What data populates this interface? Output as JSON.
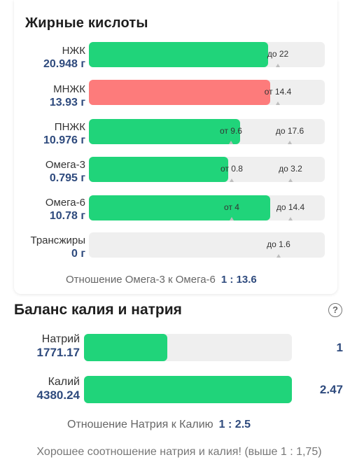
{
  "fatty_acids": {
    "title": "Жирные кислоты",
    "rows": [
      {
        "name": "НЖК",
        "amount": "20.948 г",
        "fill_fraction": 0.76,
        "color": "#20d47a",
        "markers": [
          "до 22"
        ]
      },
      {
        "name": "МНЖК",
        "amount": "13.93 г",
        "fill_fraction": 0.77,
        "color": "#fd7b7b",
        "markers": [
          "от 14.4"
        ]
      },
      {
        "name": "ПНЖК",
        "amount": "10.976 г",
        "fill_fraction": 0.64,
        "color": "#20d47a",
        "markers": [
          "от 9.6",
          "до 17.6"
        ]
      },
      {
        "name": "Омега-3",
        "amount": "0.795 г",
        "fill_fraction": 0.59,
        "color": "#20d47a",
        "markers": [
          "от 0.8",
          "до 3.2"
        ]
      },
      {
        "name": "Омега-6",
        "amount": "10.78 г",
        "fill_fraction": 0.77,
        "color": "#20d47a",
        "markers": [
          "от 4",
          "до 14.4"
        ]
      },
      {
        "name": "Трансжиры",
        "amount": "0 г",
        "fill_fraction": 0.0,
        "color": "#20d47a",
        "markers": [
          "до 1.6"
        ]
      }
    ],
    "ratio_label": "Отношение Омега-3 к Омега-6",
    "ratio_value": "1 : 13.6"
  },
  "potassium_sodium": {
    "title": "Баланс калия и натрия",
    "help_icon": "question-circle-icon",
    "help_glyph": "?",
    "rows": [
      {
        "name": "Натрий",
        "amount": "1771.17",
        "fill_fraction": 0.4,
        "side_value": "1"
      },
      {
        "name": "Калий",
        "amount": "4380.24",
        "fill_fraction": 1.0,
        "side_value": "2.47"
      }
    ],
    "ratio_label": "Отношение Натрия к Калию",
    "ratio_value": "1 : 2.5",
    "note": "Хорошее соотношение натрия и калия! (выше 1 : 1,75)"
  },
  "colors": {
    "green": "#20d47a",
    "red": "#fd7b7b",
    "track": "#efefef",
    "value_blue": "#2e4a7d"
  }
}
